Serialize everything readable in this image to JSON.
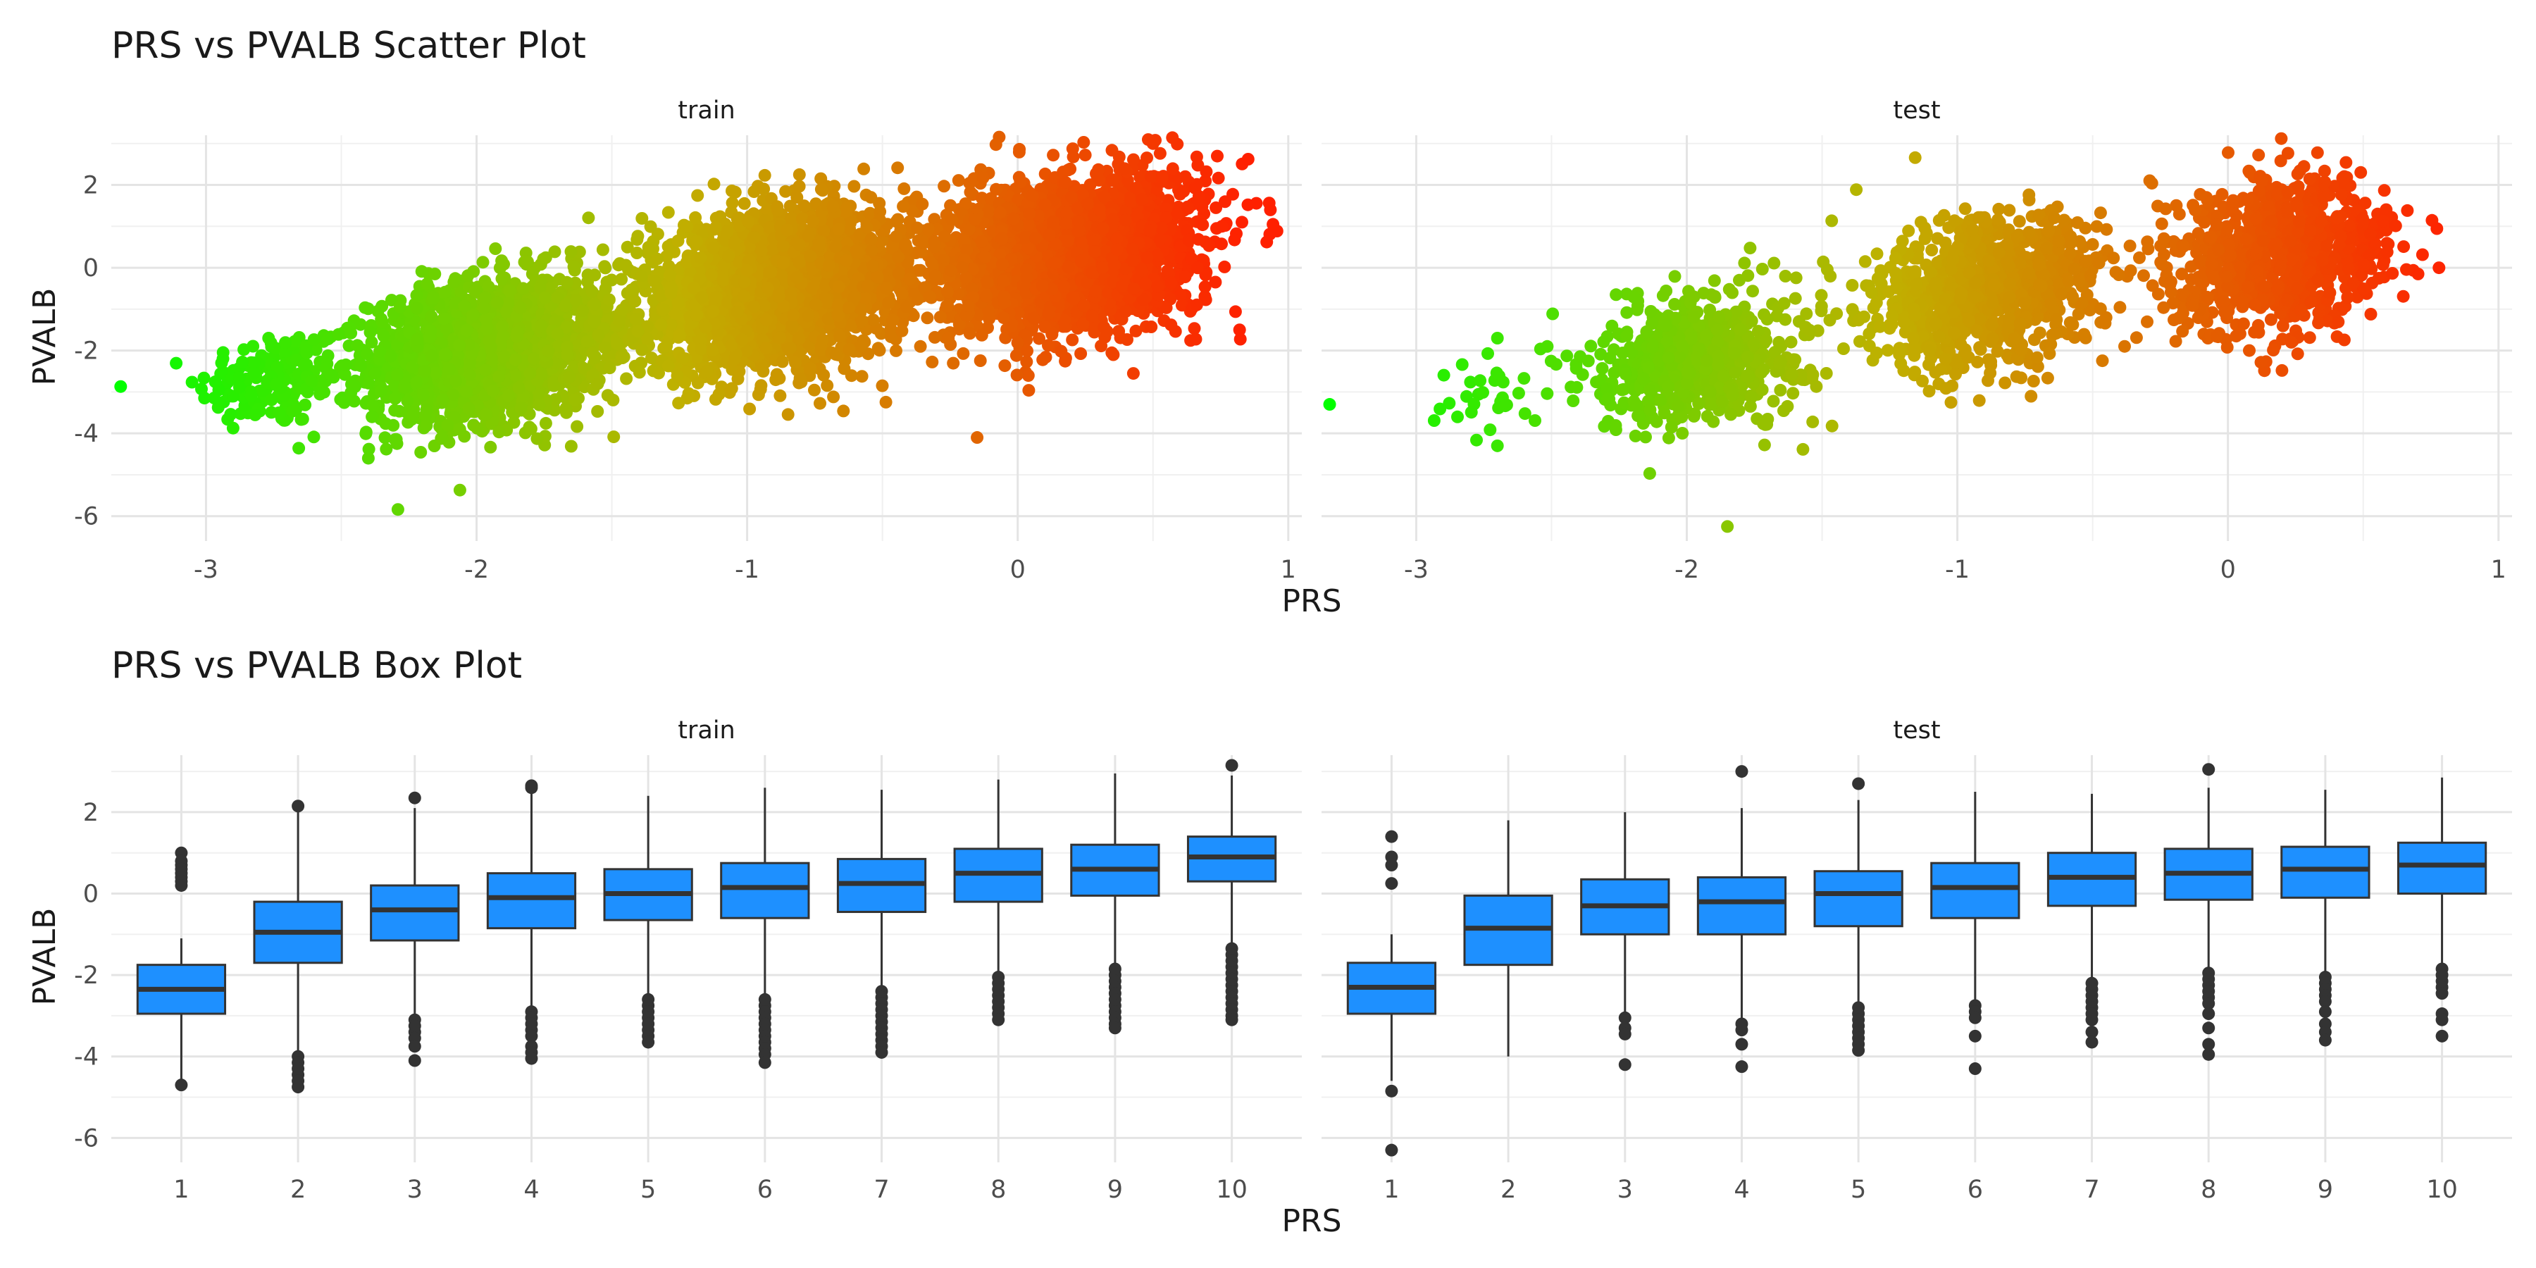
{
  "chart_data": [
    {
      "type": "scatter",
      "title": "PRS vs PVALB Scatter Plot",
      "xlabel": "PRS",
      "ylabel": "PVALB",
      "facets": [
        "train",
        "test"
      ],
      "x_ticks": [
        -3,
        -2,
        -1,
        0,
        1
      ],
      "y_ticks": [
        2,
        0,
        -2,
        -4,
        -6
      ],
      "xlim": [
        -3.35,
        1.05
      ],
      "ylim": [
        -6.6,
        3.2
      ],
      "grid": true,
      "legend": "none",
      "color_scale": {
        "low": "#00ff00",
        "high": "#ff2000",
        "mapped_to": "PRS"
      },
      "clusters": {
        "train": [
          {
            "x_mean": -2.75,
            "x_sd": 0.14,
            "y_mean": -2.7,
            "y_sd": 0.6,
            "n": 170
          },
          {
            "x_mean": -1.95,
            "x_sd": 0.22,
            "y_mean": -2.0,
            "y_sd": 0.85,
            "n": 1700
          },
          {
            "x_mean": -0.9,
            "x_sd": 0.25,
            "y_mean": -0.5,
            "y_sd": 0.9,
            "n": 2500
          },
          {
            "x_mean": 0.2,
            "x_sd": 0.23,
            "y_mean": 0.35,
            "y_sd": 0.9,
            "n": 2500
          }
        ],
        "test": [
          {
            "x_mean": -2.75,
            "x_sd": 0.08,
            "y_mean": -3.0,
            "y_sd": 0.5,
            "n": 30
          },
          {
            "x_mean": -1.95,
            "x_sd": 0.2,
            "y_mean": -2.2,
            "y_sd": 0.8,
            "n": 600
          },
          {
            "x_mean": -0.9,
            "x_sd": 0.22,
            "y_mean": -0.6,
            "y_sd": 0.9,
            "n": 900
          },
          {
            "x_mean": 0.2,
            "x_sd": 0.2,
            "y_mean": 0.3,
            "y_sd": 0.9,
            "n": 900
          }
        ]
      },
      "extra_points": {
        "train": [
          {
            "x": 0.82,
            "y": -1.5
          },
          {
            "x": 0.5,
            "y": 3.0
          },
          {
            "x": -2.4,
            "y": -4.6
          },
          {
            "x": -0.15,
            "y": -4.1
          }
        ],
        "test": [
          {
            "x": -3.32,
            "y": -3.3
          },
          {
            "x": 0.78,
            "y": 0.0
          },
          {
            "x": -1.85,
            "y": -6.25
          },
          {
            "x": -2.7,
            "y": -1.7
          },
          {
            "x": -2.7,
            "y": -4.3
          }
        ]
      }
    },
    {
      "type": "box",
      "title": "PRS vs PVALB Box Plot",
      "xlabel": "PRS",
      "ylabel": "PVALB",
      "facets": [
        "train",
        "test"
      ],
      "categories": [
        "1",
        "2",
        "3",
        "4",
        "5",
        "6",
        "7",
        "8",
        "9",
        "10"
      ],
      "y_ticks": [
        2,
        0,
        -2,
        -4,
        -6
      ],
      "ylim": [
        -6.6,
        3.4
      ],
      "grid": true,
      "fill": "#1e90ff",
      "series": [
        {
          "name": "train",
          "boxes": [
            {
              "q1": -2.95,
              "median": -2.35,
              "q3": -1.75,
              "lower": -4.6,
              "upper": -1.1
            },
            {
              "q1": -1.7,
              "median": -0.95,
              "q3": -0.2,
              "lower": -3.9,
              "upper": 2.0
            },
            {
              "q1": -1.15,
              "median": -0.4,
              "q3": 0.2,
              "lower": -3.0,
              "upper": 2.1
            },
            {
              "q1": -0.85,
              "median": -0.1,
              "q3": 0.5,
              "lower": -2.8,
              "upper": 2.5
            },
            {
              "q1": -0.65,
              "median": 0.0,
              "q3": 0.6,
              "lower": -2.5,
              "upper": 2.4
            },
            {
              "q1": -0.6,
              "median": 0.15,
              "q3": 0.75,
              "lower": -2.5,
              "upper": 2.6
            },
            {
              "q1": -0.45,
              "median": 0.25,
              "q3": 0.85,
              "lower": -2.3,
              "upper": 2.55
            },
            {
              "q1": -0.2,
              "median": 0.5,
              "q3": 1.1,
              "lower": -2.0,
              "upper": 2.8
            },
            {
              "q1": -0.05,
              "median": 0.6,
              "q3": 1.2,
              "lower": -1.8,
              "upper": 2.95
            },
            {
              "q1": 0.3,
              "median": 0.9,
              "q3": 1.4,
              "lower": -1.3,
              "upper": 2.9
            }
          ],
          "outliers": [
            [
              1.0,
              0.8,
              0.7,
              0.6,
              0.5,
              0.4,
              0.3,
              0.2,
              -4.7
            ],
            [
              2.15,
              -4.0,
              -4.15,
              -4.3,
              -4.45,
              -4.6,
              -4.75
            ],
            [
              2.35,
              -3.1,
              -3.25,
              -3.4,
              -3.55,
              -3.75,
              -4.1
            ],
            [
              2.65,
              2.6,
              -2.9,
              -3.05,
              -3.2,
              -3.35,
              -3.5,
              -3.75,
              -3.9,
              -4.05
            ],
            [
              -2.6,
              -2.75,
              -2.9,
              -3.05,
              -3.2,
              -3.35,
              -3.5,
              -3.65
            ],
            [
              -2.6,
              -2.75,
              -2.9,
              -3.05,
              -3.2,
              -3.35,
              -3.5,
              -3.65,
              -3.8,
              -3.95,
              -4.15
            ],
            [
              -2.4,
              -2.55,
              -2.7,
              -2.85,
              -3.0,
              -3.15,
              -3.3,
              -3.45,
              -3.6,
              -3.75,
              -3.9
            ],
            [
              -2.05,
              -2.2,
              -2.35,
              -2.5,
              -2.65,
              -2.8,
              -2.95,
              -3.1
            ],
            [
              -1.85,
              -2.0,
              -2.15,
              -2.3,
              -2.45,
              -2.6,
              -2.75,
              -2.9,
              -3.05,
              -3.2,
              -3.3
            ],
            [
              3.15,
              -1.35,
              -1.5,
              -1.65,
              -1.8,
              -1.95,
              -2.1,
              -2.25,
              -2.4,
              -2.55,
              -2.7,
              -2.85,
              -3.0,
              -3.1
            ]
          ]
        },
        {
          "name": "test",
          "boxes": [
            {
              "q1": -2.95,
              "median": -2.3,
              "q3": -1.7,
              "lower": -4.6,
              "upper": -1.0
            },
            {
              "q1": -1.75,
              "median": -0.85,
              "q3": -0.05,
              "lower": -4.0,
              "upper": 1.8
            },
            {
              "q1": -1.0,
              "median": -0.3,
              "q3": 0.35,
              "lower": -2.9,
              "upper": 2.0
            },
            {
              "q1": -1.0,
              "median": -0.2,
              "q3": 0.4,
              "lower": -3.1,
              "upper": 2.1
            },
            {
              "q1": -0.8,
              "median": 0.0,
              "q3": 0.55,
              "lower": -2.7,
              "upper": 2.3
            },
            {
              "q1": -0.6,
              "median": 0.15,
              "q3": 0.75,
              "lower": -2.6,
              "upper": 2.5
            },
            {
              "q1": -0.3,
              "median": 0.4,
              "q3": 1.0,
              "lower": -2.1,
              "upper": 2.45
            },
            {
              "q1": -0.15,
              "median": 0.5,
              "q3": 1.1,
              "lower": -1.85,
              "upper": 2.6
            },
            {
              "q1": -0.1,
              "median": 0.6,
              "q3": 1.15,
              "lower": -1.95,
              "upper": 2.55
            },
            {
              "q1": 0.0,
              "median": 0.7,
              "q3": 1.25,
              "lower": -1.8,
              "upper": 2.85
            }
          ],
          "outliers": [
            [
              1.4,
              0.9,
              0.7,
              0.25,
              -4.85,
              -6.3
            ],
            [],
            [
              -3.05,
              -3.3,
              -3.45,
              -4.2
            ],
            [
              3.0,
              -3.2,
              -3.35,
              -3.7,
              -4.25
            ],
            [
              2.7,
              -2.8,
              -2.95,
              -3.1,
              -3.25,
              -3.4,
              -3.55,
              -3.7,
              -3.85
            ],
            [
              -2.75,
              -2.9,
              -3.05,
              -3.5,
              -4.3
            ],
            [
              -2.2,
              -2.35,
              -2.5,
              -2.65,
              -2.8,
              -2.95,
              -3.1,
              -3.4,
              -3.65
            ],
            [
              3.05,
              -1.95,
              -2.1,
              -2.25,
              -2.4,
              -2.55,
              -2.7,
              -2.95,
              -3.3,
              -3.7,
              -3.95
            ],
            [
              -2.05,
              -2.2,
              -2.35,
              -2.5,
              -2.65,
              -2.9,
              -3.2,
              -3.4,
              -3.6
            ],
            [
              -1.85,
              -2.0,
              -2.15,
              -2.3,
              -2.45,
              -2.95,
              -3.1,
              -3.5
            ]
          ]
        }
      ]
    }
  ]
}
